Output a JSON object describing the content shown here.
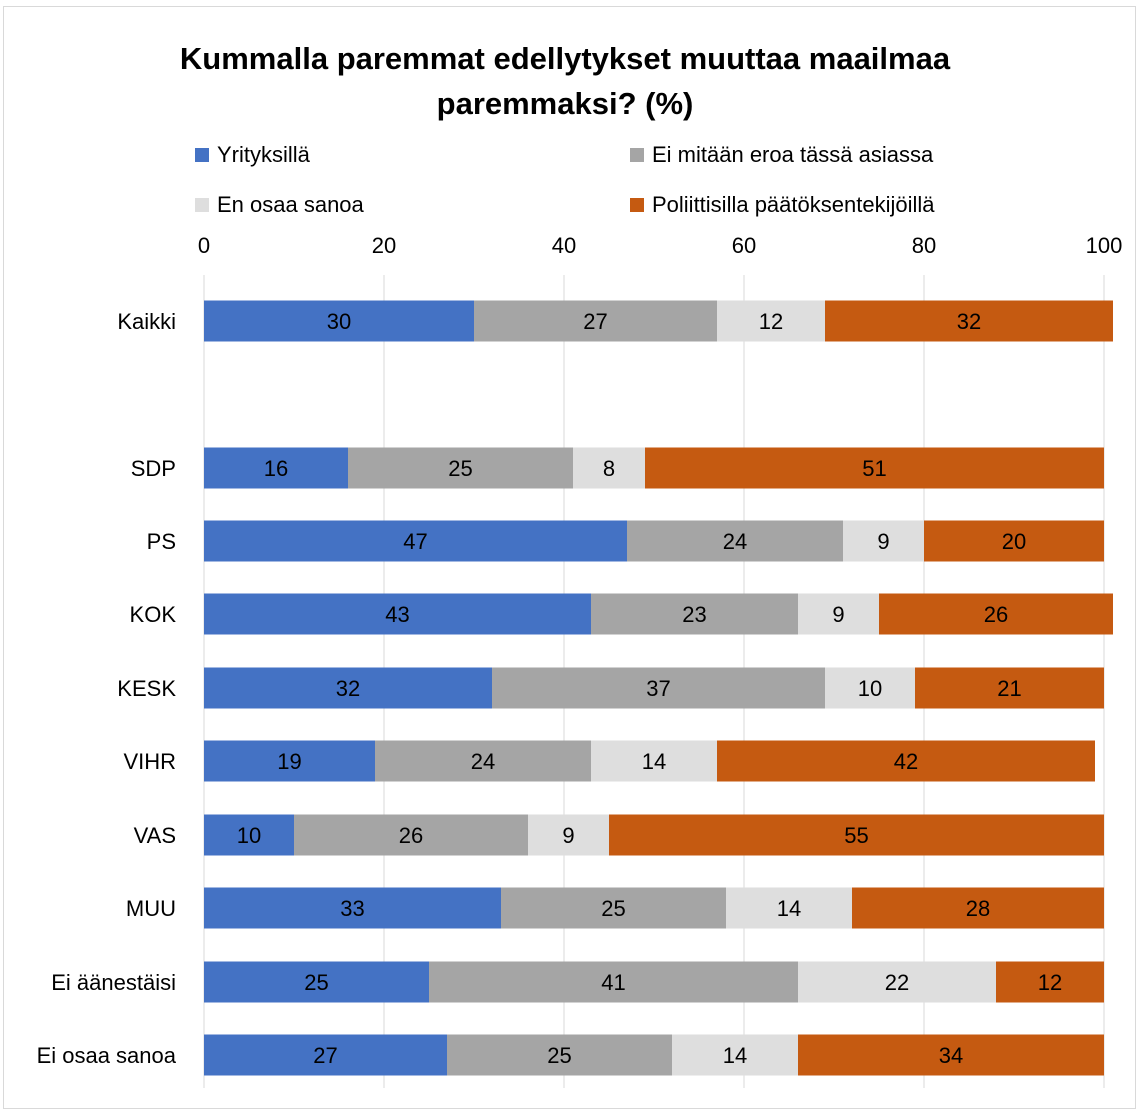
{
  "chart_data": {
    "type": "bar",
    "orientation": "horizontal",
    "stacked": true,
    "title": "Kummalla paremmat edellytykset muuttaa maailmaa paremmaksi? (%)",
    "title_lines": [
      "Kummalla paremmat edellytykset muuttaa maailmaa",
      "paremmaksi? (%)"
    ],
    "xlim": [
      0,
      100
    ],
    "xticks": [
      "0",
      "20",
      "40",
      "60",
      "80",
      "100"
    ],
    "grid": true,
    "legend_position": "top",
    "categories": [
      "Kaikki",
      "SDP",
      "PS",
      "KOK",
      "KESK",
      "VIHR",
      "VAS",
      "MUU",
      "Ei äänestäisi",
      "Ei osaa sanoa"
    ],
    "series": [
      {
        "name": "Yrityksillä",
        "color": "#4472c4",
        "values": [
          30,
          16,
          47,
          43,
          32,
          19,
          10,
          33,
          25,
          27
        ]
      },
      {
        "name": "Ei mitään eroa tässä asiassa",
        "color": "#a5a5a5",
        "values": [
          27,
          25,
          24,
          23,
          37,
          24,
          26,
          25,
          41,
          25
        ]
      },
      {
        "name": "En osaa sanoa",
        "color": "#dedede",
        "values": [
          12,
          8,
          9,
          9,
          10,
          14,
          9,
          14,
          22,
          14
        ]
      },
      {
        "name": "Poliittisilla päätöksentekijöillä",
        "color": "#c55a11",
        "values": [
          32,
          51,
          20,
          26,
          21,
          42,
          55,
          28,
          12,
          34
        ]
      }
    ]
  }
}
